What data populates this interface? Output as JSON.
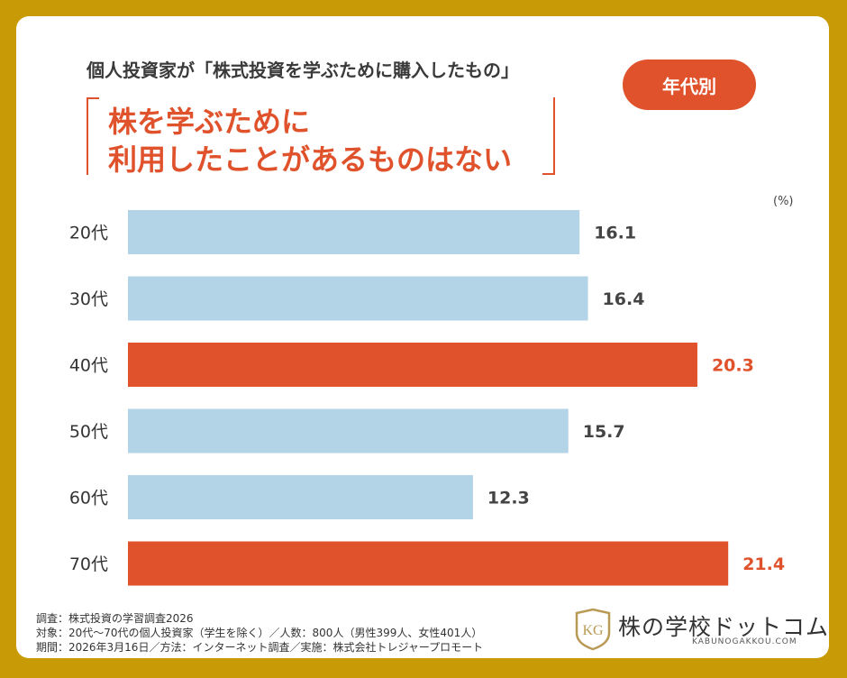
{
  "header": {
    "supertitle": "個人投資家が「株式投資を学ぶために購入したもの」",
    "title_line1": "株を学ぶために",
    "title_line2": "利用したことがあるものはない",
    "badge": "年代別"
  },
  "unit_label": "(%)",
  "colors": {
    "normal": "#b3d3e7",
    "highlight": "#e0522b",
    "label_normal": "#444444",
    "label_highlight": "#e0522b"
  },
  "chart_data": {
    "type": "bar",
    "orientation": "horizontal",
    "categories": [
      "20代",
      "30代",
      "40代",
      "50代",
      "60代",
      "70代"
    ],
    "values": [
      16.1,
      16.4,
      20.3,
      15.7,
      12.3,
      21.4
    ],
    "highlight": [
      false,
      false,
      true,
      false,
      false,
      true
    ],
    "xlim": [
      0,
      23
    ],
    "value_labels": [
      "16.1",
      "16.4",
      "20.3",
      "15.7",
      "12.3",
      "21.4"
    ]
  },
  "footer": {
    "line1": "調査：株式投資の学習調査2026",
    "line2": "対象：20代〜70代の個人投資家（学生を除く）／人数：800人（男性399人、女性401人）",
    "line3": "期間：2026年3月16日／方法：インターネット調査／実施：株式会社トレジャープロモート"
  },
  "logo": {
    "name": "株の学校ドットコム",
    "domain": "KABUNOGAKKOU.COM",
    "mark": "KG"
  }
}
